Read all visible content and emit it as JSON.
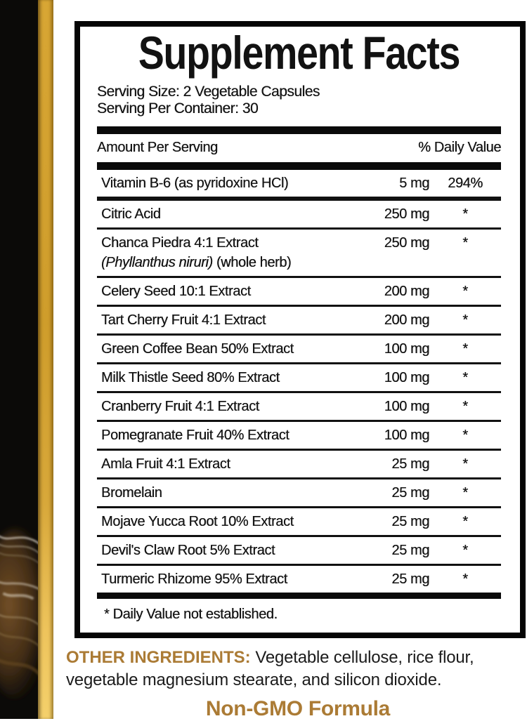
{
  "colors": {
    "accent_gold": "#ab7b35",
    "stripe_gold": "#d2a02c",
    "panel_border": "#050505"
  },
  "panel": {
    "title": "Supplement Facts",
    "serving_size": "Serving Size: 2 Vegetable Capsules",
    "serving_per_container": "Serving Per Container: 30",
    "columns": {
      "amount_header": "Amount Per Serving",
      "dv_header": "% Daily Value"
    },
    "rows": [
      {
        "name": "Vitamin B-6 (as pyridoxine HCl)",
        "amount": "5 mg",
        "dv": "294%"
      },
      {
        "name": "Citric Acid",
        "amount": "250 mg",
        "dv": "*"
      },
      {
        "name": "Chanca Piedra 4:1 Extract",
        "sub_italic": "(Phyllanthus niruri)",
        "sub_plain": "(whole herb)",
        "amount": "250 mg",
        "dv": "*"
      },
      {
        "name": "Celery Seed 10:1 Extract",
        "amount": "200 mg",
        "dv": "*"
      },
      {
        "name": "Tart Cherry Fruit 4:1 Extract",
        "amount": "200 mg",
        "dv": "*"
      },
      {
        "name": "Green Coffee Bean 50% Extract",
        "amount": "100 mg",
        "dv": "*"
      },
      {
        "name": "Milk Thistle Seed 80% Extract",
        "amount": "100 mg",
        "dv": "*"
      },
      {
        "name": "Cranberry Fruit 4:1 Extract",
        "amount": "100 mg",
        "dv": "*"
      },
      {
        "name": "Pomegranate Fruit 40% Extract",
        "amount": "100 mg",
        "dv": "*"
      },
      {
        "name": "Amla Fruit 4:1 Extract",
        "amount": "25 mg",
        "dv": "*"
      },
      {
        "name": "Bromelain",
        "amount": "25 mg",
        "dv": "*"
      },
      {
        "name": "Mojave Yucca Root 10% Extract",
        "amount": "25 mg",
        "dv": "*"
      },
      {
        "name": "Devil's Claw Root 5% Extract",
        "amount": "25 mg",
        "dv": "*"
      },
      {
        "name": "Turmeric Rhizome 95% Extract",
        "amount": "25 mg",
        "dv": "*"
      }
    ],
    "footnote": "* Daily Value not established."
  },
  "bottom": {
    "other_label": "OTHER INGREDIENTS:",
    "other_line1": "Vegetable cellulose, rice flour,",
    "other_line2": "vegetable magnesium stearate, and silicon dioxide.",
    "non_gmo": "Non-GMO Formula"
  }
}
